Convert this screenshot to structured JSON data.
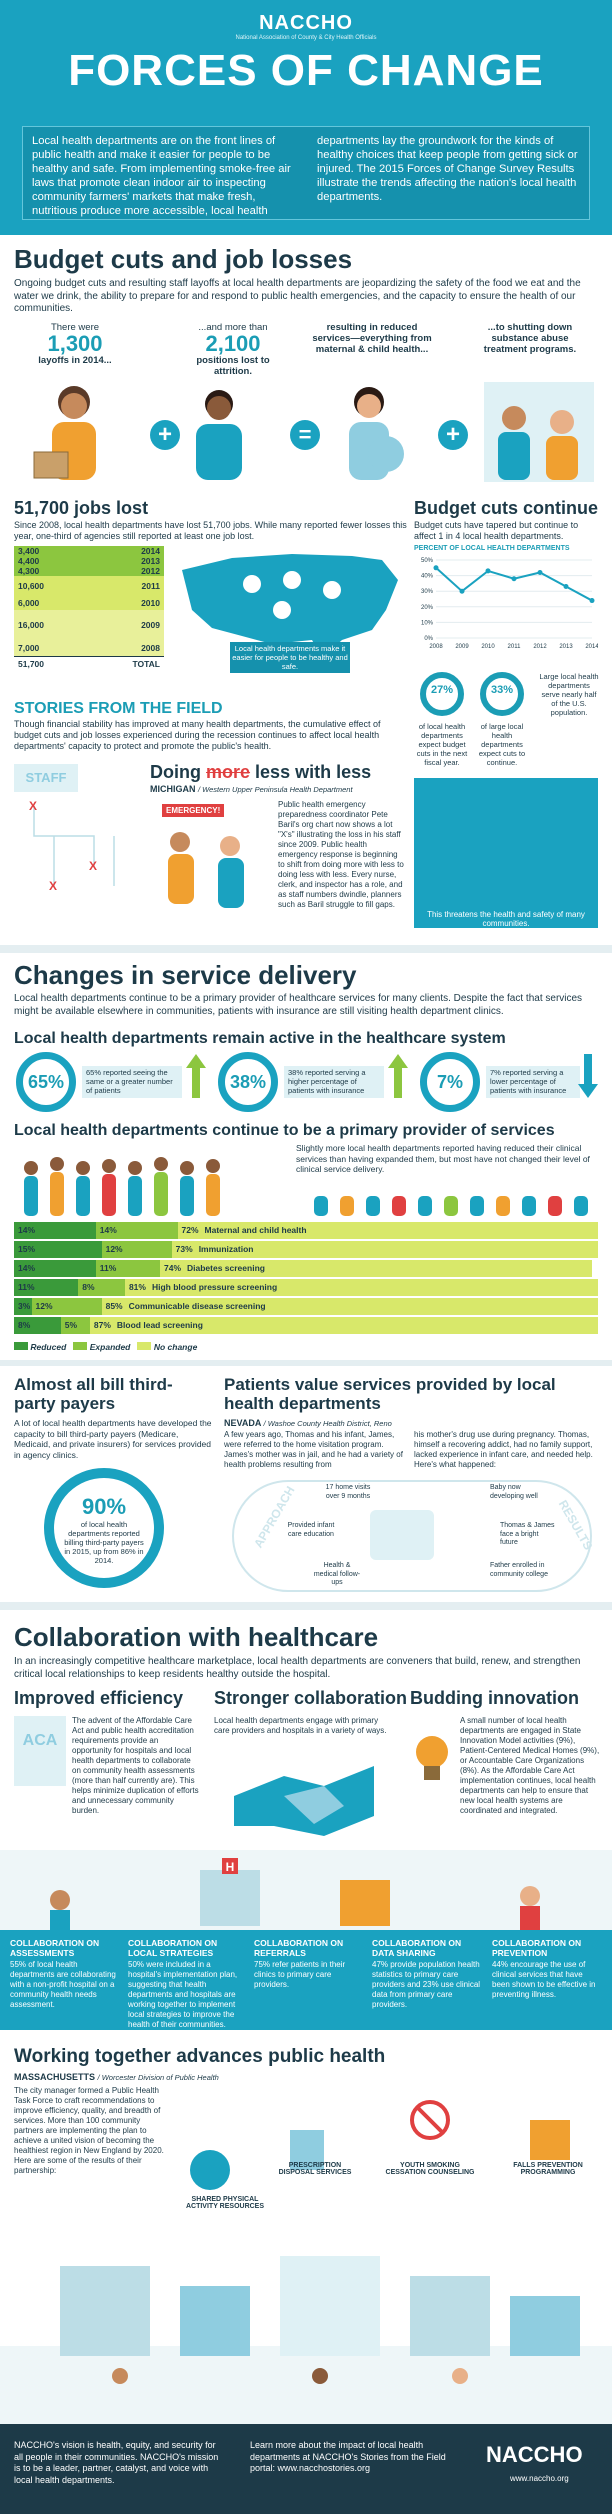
{
  "header": {
    "logo": "NACCHO",
    "logo_sub": "National Association of County & City Health Officials",
    "title": "FORCES OF CHANGE",
    "intro": "Local health departments are on the front lines of public health and make it easier for people to be healthy and safe. From implementing smoke-free air laws that promote clean indoor air to inspecting community farmers' markets that make fresh, nutritious produce more accessible, local health departments lay the groundwork for the kinds of healthy choices that keep people from getting sick or injured. The 2015 Forces of Change Survey Results illustrate the trends affecting the nation's local health departments."
  },
  "budget": {
    "title": "Budget cuts and job losses",
    "intro": "Ongoing budget cuts and resulting staff layoffs at local health departments are jeopardizing the safety of the food we eat and the water we drink, the ability to prepare for and respond to public health emergencies, and the capacity to ensure the health of our communities.",
    "stat1_pre": "There were",
    "stat1_num": "1,300",
    "stat1_post": "layoffs in 2014...",
    "stat2_pre": "...and more than",
    "stat2_num": "2,100",
    "stat2_post": "positions lost to attrition.",
    "stat3": "resulting in reduced services—everything from maternal & child health...",
    "stat4": "...to shutting down substance abuse treatment programs.",
    "plus": "+",
    "equals": "=",
    "jobs_title": "51,700 jobs lost",
    "jobs_text": "Since 2008, local health departments have lost 51,700 jobs. While many reported fewer losses this year, one-third of agencies still reported at least one job lost.",
    "jobs_table": [
      {
        "num": "3,400",
        "year": "2014"
      },
      {
        "num": "4,400",
        "year": "2013"
      },
      {
        "num": "4,300",
        "year": "2012"
      },
      {
        "num": "10,600",
        "year": "2011"
      },
      {
        "num": "6,000",
        "year": "2010"
      },
      {
        "num": "16,000",
        "year": "2009"
      },
      {
        "num": "7,000",
        "year": "2008"
      }
    ],
    "jobs_total": "51,700",
    "jobs_total_label": "TOTAL",
    "map_caption": "Local health departments make it easier for people to be healthy and safe.",
    "cut_title": "Budget cuts continue",
    "cut_text": "Budget cuts have tapered but continue to affect 1 in 4 local health departments.",
    "cut_axis": "PERCENT OF LOCAL HEALTH DEPARTMENTS",
    "cut_ticks": [
      "50%",
      "40%",
      "30%",
      "20%",
      "10%",
      "0%"
    ],
    "cut_years": [
      "2008",
      "2009",
      "2010",
      "2011",
      "2012",
      "2013",
      "2014"
    ],
    "ring1_pct": "27%",
    "ring1_text": "of local health departments expect budget cuts in the next fiscal year.",
    "ring2_pct": "33%",
    "ring2_text": "of large local health departments expect cuts to continue.",
    "ring3_text": "Large local health departments serve nearly half of the U.S. population.",
    "threat": "This threatens the health and safety of many communities."
  },
  "cut_chart": {
    "type": "line",
    "x": [
      "2008",
      "2009",
      "2010",
      "2011",
      "2012",
      "2013",
      "2014"
    ],
    "values": [
      45,
      30,
      43,
      38,
      42,
      33,
      24
    ],
    "ylim": [
      0,
      50
    ]
  },
  "stories": {
    "title": "STORIES FROM THE FIELD",
    "text": "Though financial stability has improved at many health departments, the cumulative effect of budget cuts and job losses experienced during the recession continues to affect local health departments' capacity to protect and promote the public's health.",
    "staff_label": "STAFF",
    "doing": "Doing",
    "doing_strike": "more",
    "doing_rest": "less with less",
    "location": "MICHIGAN",
    "location_sub": "/ Western Upper Peninsula Health Department",
    "emergency": "EMERGENCY!",
    "story": "Public health emergency preparedness coordinator Pete Baril's org chart now shows a lot \"X's\" illustrating the loss in his staff since 2009. Public health emergency response is beginning to shift from doing more with less to doing less with less. Every nurse, clerk, and inspector has a role, and as staff numbers dwindle, planners such as Baril struggle to fill gaps."
  },
  "service": {
    "title": "Changes in service delivery",
    "intro": "Local health departments continue to be a primary provider of healthcare services for many clients. Despite the fact that services might be available elsewhere in communities, patients with insurance are still visiting health department clinics.",
    "active_title": "Local health departments remain active in the healthcare system",
    "pct1": "65%",
    "pct1_text": "65% reported seeing the same or a greater number of patients",
    "pct2": "38%",
    "pct2_text": "38% reported serving a higher percentage of patients with insurance",
    "pct3": "7%",
    "pct3_text": "7% reported serving a lower percentage of patients with insurance",
    "provider_title": "Local health departments continue to be a primary provider of services",
    "provider_text": "Slightly more local health departments reported having reduced their clinical services than having expanded them, but most have not changed their level of clinical service delivery.",
    "bars": [
      {
        "reduced": "14%",
        "expanded": "14%",
        "nochange": "72%",
        "label": "Maternal and child health"
      },
      {
        "reduced": "15%",
        "expanded": "12%",
        "nochange": "73%",
        "label": "Immunization"
      },
      {
        "reduced": "14%",
        "expanded": "11%",
        "nochange": "74%",
        "label": "Diabetes screening"
      },
      {
        "reduced": "11%",
        "expanded": "8%",
        "nochange": "81%",
        "label": "High blood pressure screening"
      },
      {
        "reduced": "3%",
        "expanded": "12%",
        "nochange": "85%",
        "label": "Communicable disease screening"
      },
      {
        "reduced": "8%",
        "expanded": "5%",
        "nochange": "87%",
        "label": "Blood lead screening"
      }
    ],
    "legend": [
      "Reduced",
      "Expanded",
      "No change"
    ]
  },
  "bars_chart": {
    "type": "bar",
    "categories": [
      "Maternal and child health",
      "Immunization",
      "Diabetes screening",
      "High blood pressure screening",
      "Communicable disease screening",
      "Blood lead screening"
    ],
    "series": [
      {
        "name": "Reduced",
        "values": [
          14,
          15,
          14,
          11,
          3,
          8
        ]
      },
      {
        "name": "Expanded",
        "values": [
          14,
          12,
          11,
          8,
          12,
          5
        ]
      },
      {
        "name": "No change",
        "values": [
          72,
          73,
          74,
          81,
          85,
          87
        ]
      }
    ]
  },
  "billing": {
    "title": "Almost all bill third-party payers",
    "text": "A lot of local health departments have developed the capacity to bill third-party payers (Medicare, Medicaid, and private insurers) for services provided in agency clinics.",
    "pct": "90%",
    "pct_text": "of local health departments reported billing third-party payers in 2015, up from 86% in 2014."
  },
  "patients": {
    "title": "Patients value services provided by local health departments",
    "location": "NEVADA",
    "location_sub": "/ Washoe County Health District, Reno",
    "story1": "A few years ago, Thomas and his infant, James, were referred to the home visitation program. James's mother was in jail, and he had a variety of health problems resulting from",
    "story2": "his mother's drug use during pregnancy. Thomas, himself a recovering addict, had no family support, lacked experience in infant care, and needed help. Here's what happened:",
    "approach": "APPROACH",
    "results": "RESULTS",
    "a1": "17 home visits over 9 months",
    "a2": "Provided infant care education",
    "a3": "Health & medical follow-ups",
    "r1": "Baby now developing well",
    "r2": "Thomas & James face a bright future",
    "r3": "Father enrolled in community college"
  },
  "collab": {
    "title": "Collaboration with healthcare",
    "intro": "In an increasingly competitive healthcare marketplace, local health departments are conveners that build, renew, and strengthen critical local relationships to keep residents healthy outside the hospital.",
    "c1_title": "Improved efficiency",
    "aca": "ACA",
    "c1_text": "The advent of the Affordable Care Act and public health accreditation requirements provide an opportunity for hospitals and local health departments to collaborate on community health assessments (more than half currently are). This helps minimize duplication of efforts and unnecessary community burden.",
    "c2_title": "Stronger collaboration",
    "c2_text": "Local health departments engage with primary care providers and hospitals in a variety of ways.",
    "c3_title": "Budding innovation",
    "c3_text": "A small number of local health departments are engaged in State Innovation Model activities (9%), Patient-Centered Medical Homes (9%), or Accountable Care Organizations (8%). As the Affordable Care Act implementation continues, local health departments can help to ensure that new local health systems are coordinated and integrated.",
    "boxes": [
      {
        "head": "COLLABORATION ON ASSESSMENTS",
        "text": "55% of local health departments are collaborating with a non-profit hospital on a community health needs assessment."
      },
      {
        "head": "COLLABORATION ON LOCAL STRATEGIES",
        "text": "50% were included in a hospital's implementation plan, suggesting that health departments and hospitals are working together to implement local strategies to improve the health of their communities."
      },
      {
        "head": "COLLABORATION ON REFERRALS",
        "text": "75% refer patients in their clinics to primary care providers."
      },
      {
        "head": "COLLABORATION ON DATA SHARING",
        "text": "47% provide population health statistics to primary care providers and 23% use clinical data from primary care providers."
      },
      {
        "head": "COLLABORATION ON PREVENTION",
        "text": "44% encourage the use of clinical services that have been shown to be effective in preventing illness."
      }
    ],
    "hospital_h": "H"
  },
  "together": {
    "title": "Working together advances public health",
    "location": "MASSACHUSETTS",
    "location_sub": "/ Worcester Division of Public Health",
    "text": "The city manager formed a Public Health Task Force to craft recommendations to improve efficiency, quality, and breadth of services. More than 100 community partners are implementing the plan to achieve a united vision of becoming the healthiest region in New England by 2020. Here are some of the results of their partnership:",
    "labels": [
      "SHARED PHYSICAL ACTIVITY RESOURCES",
      "PRESCRIPTION DISPOSAL SERVICES",
      "YOUTH SMOKING CESSATION COUNSELING",
      "FALLS PREVENTION PROGRAMMING"
    ]
  },
  "footer": {
    "vision": "NACCHO's vision is health, equity, and security for all people in their communities. NACCHO's mission is to be a leader, partner, catalyst, and voice with local health departments.",
    "learn": "Learn more about the impact of local health departments at NACCHO's Stories from the Field portal: www.nacchostories.org",
    "logo": "NACCHO",
    "url": "www.naccho.org"
  },
  "colors": {
    "teal": "#1aa2c0",
    "navy": "#1d3a48",
    "green": "#8cc63f",
    "lime": "#d8e86a",
    "darkgreen": "#3a9a3a"
  }
}
